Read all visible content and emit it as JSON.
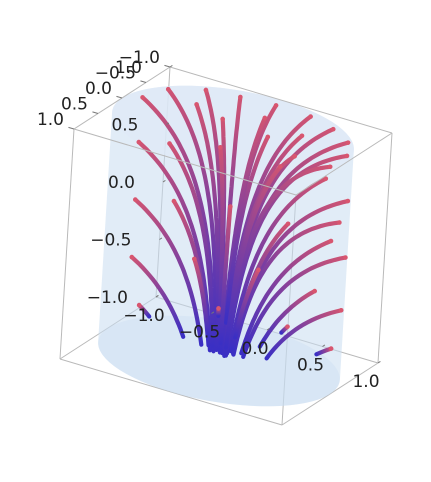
{
  "chart_data": {
    "type": "stream3d",
    "title": "",
    "xlabel": "",
    "ylabel": "",
    "zlabel": "",
    "x_ticks": [
      "−1.0",
      "−0.5",
      "0.0",
      "0.5",
      "1.0"
    ],
    "y_ticks": [
      "−1.0",
      "−0.5",
      "0.0",
      "0.5",
      "1.0"
    ],
    "z_ticks": [
      "−1.0",
      "−0.5",
      "0.0",
      "0.5",
      "1.0"
    ],
    "xlim": [
      -1,
      1
    ],
    "ylim": [
      -1,
      1
    ],
    "zlim": [
      -1,
      1
    ],
    "cylinder": {
      "radius": 1,
      "zmin": -1,
      "zmax": 1,
      "color": "#c9ddf0"
    },
    "colors": {
      "slow": "#3a2fc4",
      "fast": "#e0586a"
    },
    "streamlines": [
      {
        "x0": -0.82,
        "y0": -0.55,
        "z0": 0.98
      },
      {
        "x0": -0.58,
        "y0": -0.78,
        "z0": 0.98
      },
      {
        "x0": -0.3,
        "y0": -0.85,
        "z0": 0.98
      },
      {
        "x0": 0.0,
        "y0": -0.9,
        "z0": 0.98
      },
      {
        "x0": 0.32,
        "y0": -0.88,
        "z0": 0.98
      },
      {
        "x0": 0.58,
        "y0": -0.75,
        "z0": 0.98
      },
      {
        "x0": 0.8,
        "y0": -0.55,
        "z0": 0.98
      },
      {
        "x0": 0.92,
        "y0": -0.25,
        "z0": 0.98
      },
      {
        "x0": 0.92,
        "y0": 0.1,
        "z0": 0.98
      },
      {
        "x0": -0.9,
        "y0": -0.2,
        "z0": 0.98
      },
      {
        "x0": -0.5,
        "y0": -0.4,
        "z0": 0.98
      },
      {
        "x0": 0.05,
        "y0": -0.55,
        "z0": 0.98
      },
      {
        "x0": 0.45,
        "y0": -0.4,
        "z0": 0.98
      },
      {
        "x0": 0.6,
        "y0": 0.1,
        "z0": 0.98
      },
      {
        "x0": -0.2,
        "y0": -0.25,
        "z0": 0.98
      },
      {
        "x0": 0.25,
        "y0": -0.15,
        "z0": 0.98
      },
      {
        "x0": -0.95,
        "y0": -0.3,
        "z0": 0.55
      },
      {
        "x0": -0.8,
        "y0": -0.6,
        "z0": 0.5
      },
      {
        "x0": -0.45,
        "y0": -0.85,
        "z0": 0.5
      },
      {
        "x0": 0.05,
        "y0": -0.95,
        "z0": 0.45
      },
      {
        "x0": 0.5,
        "y0": -0.85,
        "z0": 0.5
      },
      {
        "x0": 0.85,
        "y0": -0.5,
        "z0": 0.5
      },
      {
        "x0": 0.95,
        "y0": -0.1,
        "z0": 0.45
      },
      {
        "x0": -0.95,
        "y0": -0.3,
        "z0": 0.05
      },
      {
        "x0": -0.75,
        "y0": -0.65,
        "z0": 0.0
      },
      {
        "x0": -0.35,
        "y0": -0.9,
        "z0": 0.0
      },
      {
        "x0": 0.15,
        "y0": -0.95,
        "z0": -0.02
      },
      {
        "x0": 0.6,
        "y0": -0.8,
        "z0": 0.0
      },
      {
        "x0": 0.9,
        "y0": -0.4,
        "z0": 0.05
      },
      {
        "x0": -0.95,
        "y0": -0.3,
        "z0": -0.45
      },
      {
        "x0": -0.6,
        "y0": -0.8,
        "z0": -0.5
      },
      {
        "x0": -0.1,
        "y0": -0.98,
        "z0": -0.5
      },
      {
        "x0": 0.45,
        "y0": -0.88,
        "z0": -0.5
      },
      {
        "x0": 0.85,
        "y0": -0.5,
        "z0": -0.45
      },
      {
        "x0": -0.9,
        "y0": -0.4,
        "z0": -0.88
      },
      {
        "x0": -0.4,
        "y0": -0.9,
        "z0": -0.9
      },
      {
        "x0": 0.2,
        "y0": -0.95,
        "z0": -0.9
      },
      {
        "x0": 0.7,
        "y0": -0.7,
        "z0": -0.88
      }
    ]
  }
}
